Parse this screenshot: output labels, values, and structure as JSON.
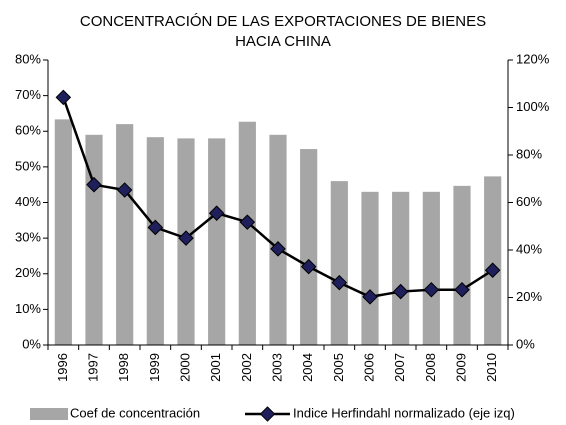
{
  "chart_data": {
    "type": "bar_line",
    "title": [
      "CONCENTRACIÓN DE LAS EXPORTACIONES DE BIENES",
      "HACIA  CHINA"
    ],
    "categories": [
      "1996",
      "1997",
      "1998",
      "1999",
      "2000",
      "2001",
      "2002",
      "2003",
      "2004",
      "2005",
      "2006",
      "2007",
      "2008",
      "2009",
      "2010"
    ],
    "series": [
      {
        "name": "Coef de concentración",
        "type": "bar",
        "axis": "y2",
        "color": "#a6a6a6",
        "values": [
          95,
          88.5,
          93,
          87.5,
          87,
          87,
          94,
          88.5,
          82.5,
          69,
          64.5,
          64.5,
          64.5,
          67,
          71
        ]
      },
      {
        "name": "Indice Herfindahl normalizado (eje izq)",
        "type": "line",
        "color": "#000000",
        "marker_color": "#1f1f5c",
        "values": [
          69.5,
          45,
          43.5,
          33,
          30,
          37,
          34.5,
          27,
          22,
          17.5,
          13.5,
          15,
          15.5,
          15.5,
          21
        ]
      }
    ],
    "ylim": [
      0,
      80
    ],
    "yticks": [
      {
        "value": 0,
        "label": "0%"
      },
      {
        "value": 10,
        "label": "10%"
      },
      {
        "value": 20,
        "label": "20%"
      },
      {
        "value": 30,
        "label": "30%"
      },
      {
        "value": 40,
        "label": "40%"
      },
      {
        "value": 50,
        "label": "50%"
      },
      {
        "value": 60,
        "label": "60%"
      },
      {
        "value": 70,
        "label": "70%"
      },
      {
        "value": 80,
        "label": "80%"
      }
    ],
    "y2lim": [
      0,
      120
    ],
    "y2ticks": [
      {
        "value": 0,
        "label": "0%"
      },
      {
        "value": 20,
        "label": "20%"
      },
      {
        "value": 40,
        "label": "40%"
      },
      {
        "value": 60,
        "label": "60%"
      },
      {
        "value": 80,
        "label": "80%"
      },
      {
        "value": 100,
        "label": "100%"
      },
      {
        "value": 120,
        "label": "120%"
      }
    ],
    "legend": "bottom"
  }
}
